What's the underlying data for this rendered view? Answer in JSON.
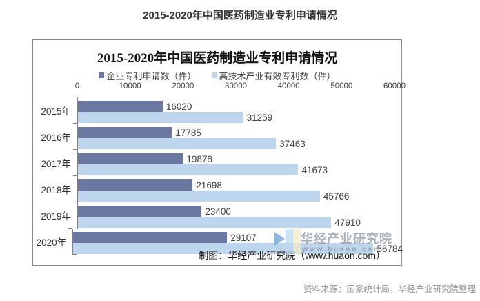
{
  "page_title": "2015-2020年中国医药制造业专利申请情况",
  "chart": {
    "title": "2015-2020年中国医药制造业专利申请情况",
    "credit": "制图：华经产业研究院（www.huaon.com）"
  },
  "chart_data": {
    "type": "bar",
    "orientation": "horizontal",
    "title": "2015-2020年中国医药制造业专利申请情况",
    "categories": [
      "2015年",
      "2016年",
      "2017年",
      "2018年",
      "2019年",
      "2020年"
    ],
    "series": [
      {
        "name": "企业专利申请数（件）",
        "color": "#6A78A1",
        "values": [
          16020,
          17785,
          19878,
          21698,
          23400,
          29107
        ]
      },
      {
        "name": "高技术产业有效专利数（件）",
        "color": "#BDD6EE",
        "values": [
          31259,
          37463,
          41673,
          45766,
          47910,
          56784
        ]
      }
    ],
    "xlabel": "",
    "ylabel": "",
    "xlim": [
      0,
      60000
    ],
    "x_ticks": [
      0,
      10000,
      20000,
      30000,
      40000,
      50000,
      60000
    ],
    "legend_position": "top",
    "grid": false,
    "axis_color": "#808080"
  },
  "watermark": {
    "name": "华经产业研究院",
    "url": "www.huaon.com"
  },
  "footer": {
    "source": "资料来源：国家统计局，华经产业研究院整理"
  }
}
